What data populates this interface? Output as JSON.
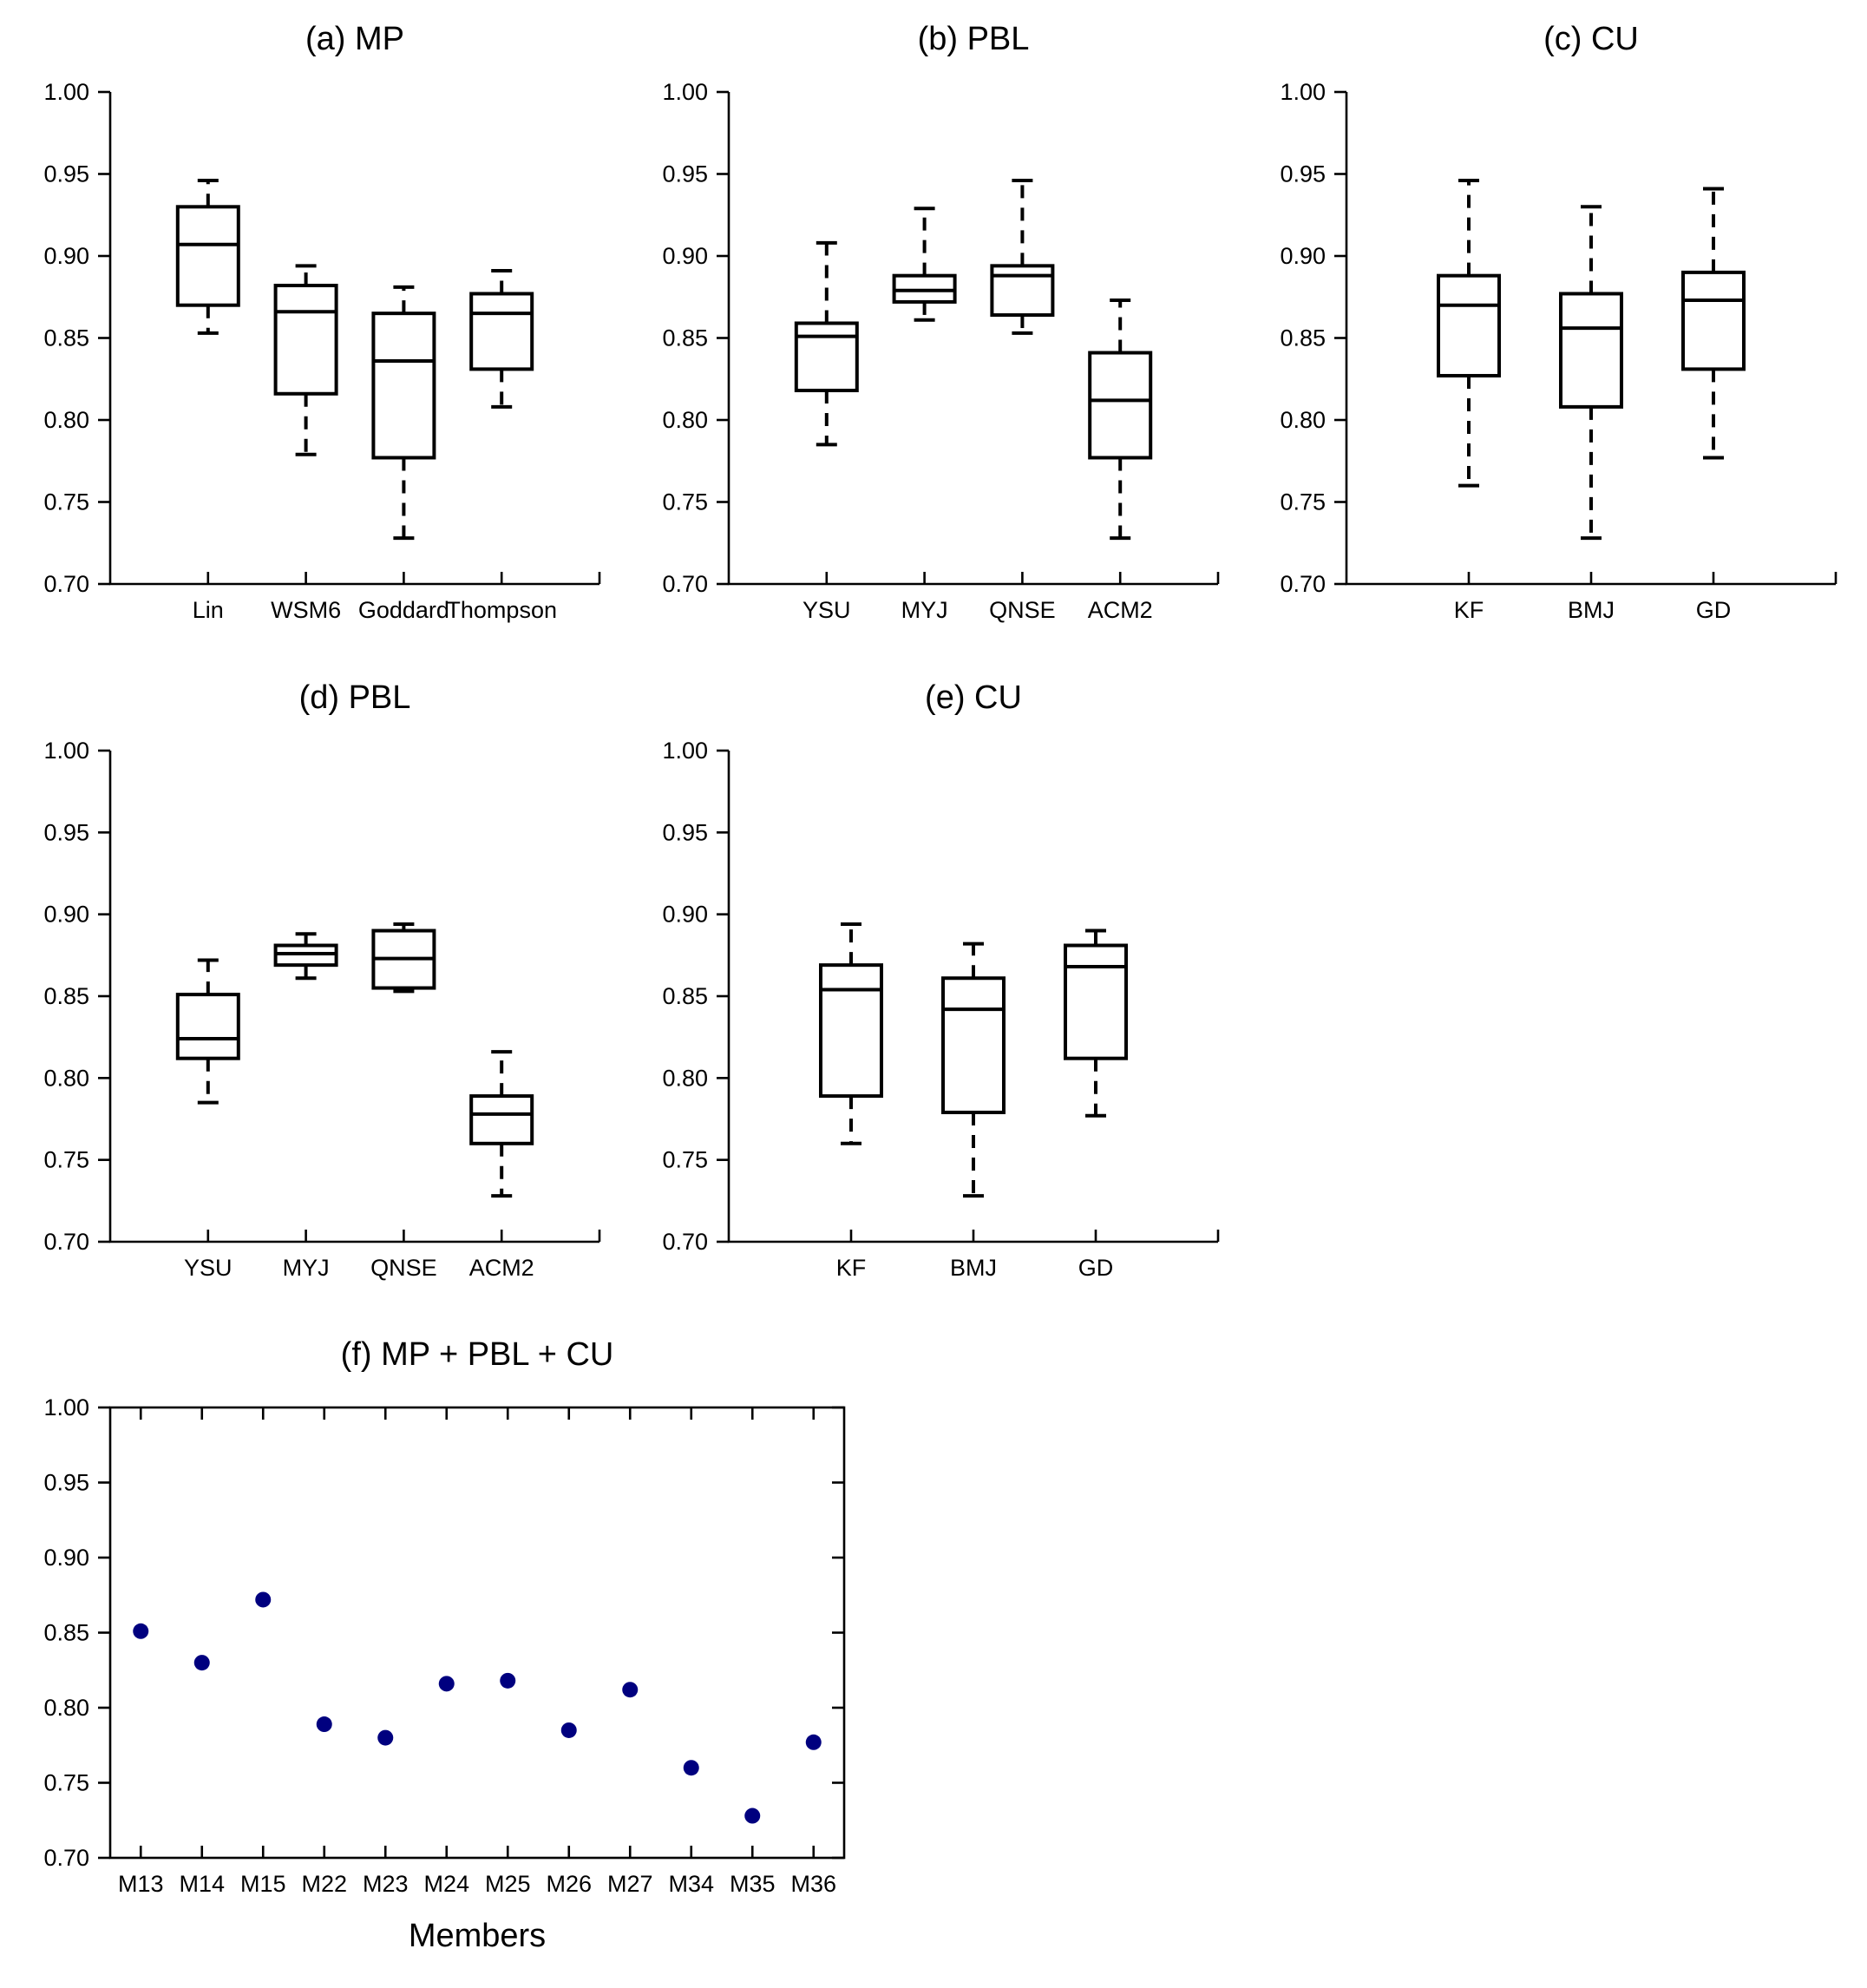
{
  "chart_data": [
    {
      "id": "a",
      "type": "box",
      "title": "(a) MP",
      "categories": [
        "Lin",
        "WSM6",
        "Goddard",
        "Thompson"
      ],
      "boxes": [
        {
          "min": 0.853,
          "q1": 0.87,
          "median": 0.907,
          "q3": 0.93,
          "max": 0.946
        },
        {
          "min": 0.779,
          "q1": 0.816,
          "median": 0.866,
          "q3": 0.882,
          "max": 0.894
        },
        {
          "min": 0.728,
          "q1": 0.777,
          "median": 0.836,
          "q3": 0.865,
          "max": 0.881
        },
        {
          "min": 0.808,
          "q1": 0.831,
          "median": 0.865,
          "q3": 0.877,
          "max": 0.891
        }
      ],
      "ylim": [
        0.7,
        1.0
      ],
      "yticks": [
        "0.70",
        "0.75",
        "0.80",
        "0.85",
        "0.90",
        "0.95",
        "1.00"
      ],
      "xlabel": "",
      "ylabel": ""
    },
    {
      "id": "b",
      "type": "box",
      "title": "(b) PBL",
      "categories": [
        "YSU",
        "MYJ",
        "QNSE",
        "ACM2"
      ],
      "boxes": [
        {
          "min": 0.785,
          "q1": 0.818,
          "median": 0.851,
          "q3": 0.859,
          "max": 0.908
        },
        {
          "min": 0.861,
          "q1": 0.872,
          "median": 0.879,
          "q3": 0.888,
          "max": 0.929
        },
        {
          "min": 0.853,
          "q1": 0.864,
          "median": 0.888,
          "q3": 0.894,
          "max": 0.946
        },
        {
          "min": 0.728,
          "q1": 0.777,
          "median": 0.812,
          "q3": 0.841,
          "max": 0.873
        }
      ],
      "ylim": [
        0.7,
        1.0
      ],
      "yticks": [
        "0.70",
        "0.75",
        "0.80",
        "0.85",
        "0.90",
        "0.95",
        "1.00"
      ],
      "xlabel": "",
      "ylabel": ""
    },
    {
      "id": "c",
      "type": "box",
      "title": "(c) CU",
      "categories": [
        "KF",
        "BMJ",
        "GD"
      ],
      "boxes": [
        {
          "min": 0.76,
          "q1": 0.827,
          "median": 0.87,
          "q3": 0.888,
          "max": 0.946
        },
        {
          "min": 0.728,
          "q1": 0.808,
          "median": 0.856,
          "q3": 0.877,
          "max": 0.93
        },
        {
          "min": 0.777,
          "q1": 0.831,
          "median": 0.873,
          "q3": 0.89,
          "max": 0.941
        }
      ],
      "ylim": [
        0.7,
        1.0
      ],
      "yticks": [
        "0.70",
        "0.75",
        "0.80",
        "0.85",
        "0.90",
        "0.95",
        "1.00"
      ],
      "xlabel": "",
      "ylabel": ""
    },
    {
      "id": "d",
      "type": "box",
      "title": "(d) PBL",
      "categories": [
        "YSU",
        "MYJ",
        "QNSE",
        "ACM2"
      ],
      "boxes": [
        {
          "min": 0.785,
          "q1": 0.812,
          "median": 0.824,
          "q3": 0.851,
          "max": 0.872
        },
        {
          "min": 0.861,
          "q1": 0.869,
          "median": 0.876,
          "q3": 0.881,
          "max": 0.888
        },
        {
          "min": 0.853,
          "q1": 0.855,
          "median": 0.873,
          "q3": 0.89,
          "max": 0.894
        },
        {
          "min": 0.728,
          "q1": 0.76,
          "median": 0.778,
          "q3": 0.789,
          "max": 0.816
        }
      ],
      "ylim": [
        0.7,
        1.0
      ],
      "yticks": [
        "0.70",
        "0.75",
        "0.80",
        "0.85",
        "0.90",
        "0.95",
        "1.00"
      ],
      "xlabel": "",
      "ylabel": ""
    },
    {
      "id": "e",
      "type": "box",
      "title": "(e) CU",
      "categories": [
        "KF",
        "BMJ",
        "GD"
      ],
      "boxes": [
        {
          "min": 0.76,
          "q1": 0.789,
          "median": 0.854,
          "q3": 0.869,
          "max": 0.894
        },
        {
          "min": 0.728,
          "q1": 0.779,
          "median": 0.842,
          "q3": 0.861,
          "max": 0.882
        },
        {
          "min": 0.777,
          "q1": 0.812,
          "median": 0.868,
          "q3": 0.881,
          "max": 0.89
        }
      ],
      "ylim": [
        0.7,
        1.0
      ],
      "yticks": [
        "0.70",
        "0.75",
        "0.80",
        "0.85",
        "0.90",
        "0.95",
        "1.00"
      ],
      "xlabel": "",
      "ylabel": ""
    },
    {
      "id": "f",
      "type": "scatter",
      "title": "(f) MP + PBL + CU",
      "categories": [
        "M13",
        "M14",
        "M15",
        "M22",
        "M23",
        "M24",
        "M25",
        "M26",
        "M27",
        "M34",
        "M35",
        "M36"
      ],
      "values": [
        0.851,
        0.83,
        0.872,
        0.789,
        0.78,
        0.816,
        0.818,
        0.785,
        0.812,
        0.76,
        0.728,
        0.777
      ],
      "ylim": [
        0.7,
        1.0
      ],
      "yticks": [
        "0.70",
        "0.75",
        "0.80",
        "0.85",
        "0.90",
        "0.95",
        "1.00"
      ],
      "xlabel": "Members",
      "ylabel": "",
      "point_color": "#00007f"
    }
  ]
}
